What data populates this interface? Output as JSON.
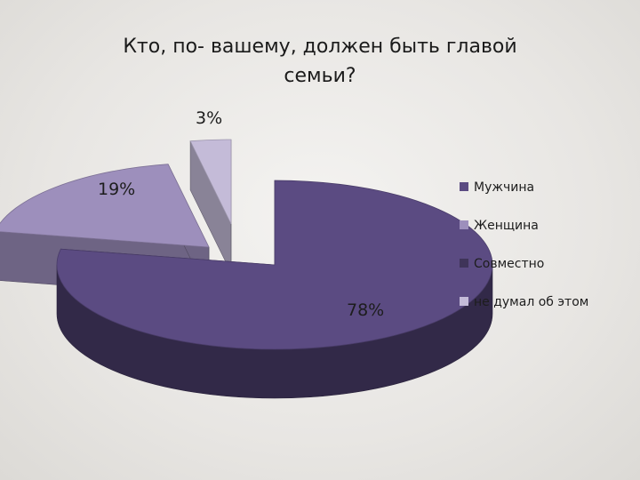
{
  "chart_data": {
    "type": "pie",
    "title": "Кто, по- вашему, должен быть главой семьи?",
    "categories": [
      "Мужчина",
      "Женщина",
      "Совместно",
      "не думал об этом"
    ],
    "values": [
      78,
      19,
      0,
      3
    ],
    "data_labels": [
      "78%",
      "19%",
      "",
      "3%"
    ],
    "colors": [
      "#5b4b82",
      "#9d8fbc",
      "#3f3459",
      "#c4bbd8"
    ],
    "legend_position": "right",
    "style": "3d-exploded"
  }
}
